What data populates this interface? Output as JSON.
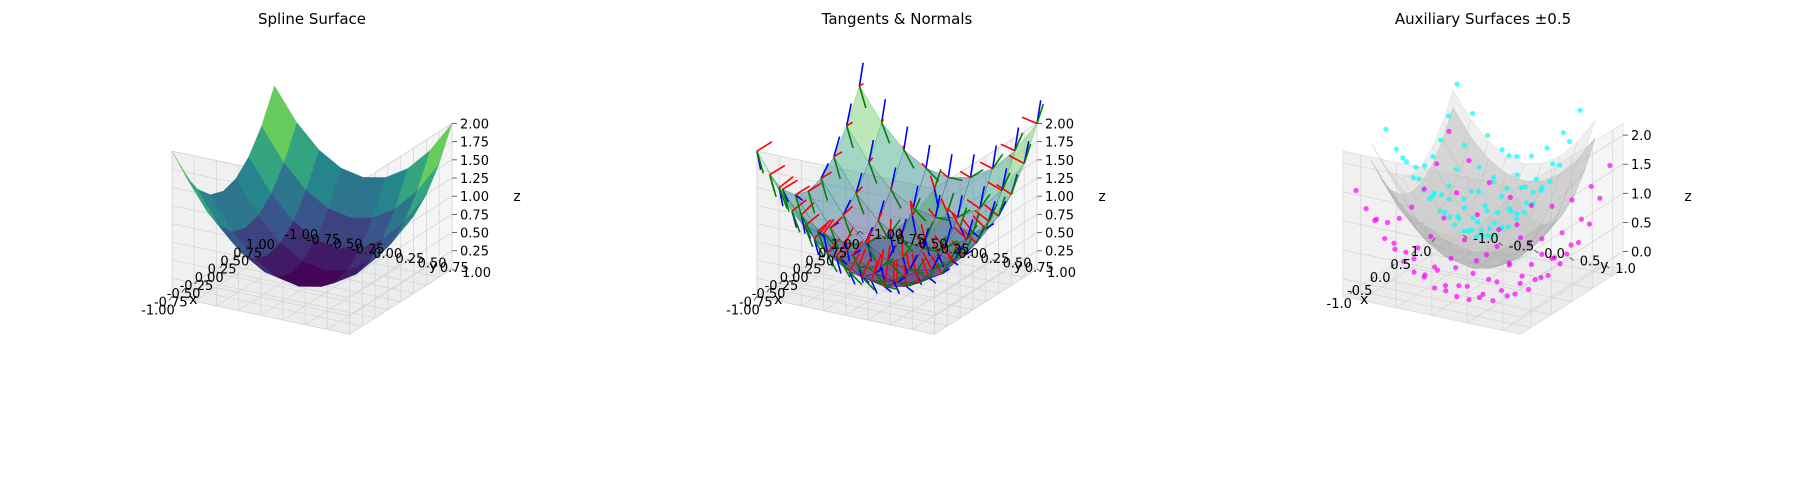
{
  "figure": {
    "background": "#ffffff"
  },
  "chart_data": [
    {
      "type": "surface3d",
      "title": "Spline Surface",
      "xlabel": "x",
      "ylabel": "y",
      "zlabel": "z",
      "xlim": [
        -1.0,
        1.0
      ],
      "ylim": [
        -1.0,
        1.0
      ],
      "zlim": [
        0.0,
        2.0
      ],
      "xticks": [
        "-1.00",
        "-0.75",
        "-0.50",
        "-0.25",
        "0.00",
        "0.25",
        "0.50",
        "0.75",
        "1.00"
      ],
      "yticks": [
        "-1.00",
        "-0.75",
        "-0.50",
        "-0.25",
        "0.00",
        "0.25",
        "0.50",
        "0.75",
        "1.00"
      ],
      "zticks": [
        "0.25",
        "0.50",
        "0.75",
        "1.00",
        "1.25",
        "1.50",
        "1.75",
        "2.00"
      ],
      "surface": {
        "function": "x^2 + y^2",
        "grid": 9,
        "colormap": "viridis"
      },
      "grid": true
    },
    {
      "type": "surface3d",
      "title": "Tangents & Normals",
      "xlabel": "x",
      "ylabel": "y",
      "zlabel": "z",
      "xlim": [
        -1.0,
        1.0
      ],
      "ylim": [
        -1.0,
        1.0
      ],
      "zlim": [
        0.0,
        2.0
      ],
      "xticks": [
        "-1.00",
        "-0.75",
        "-0.50",
        "-0.25",
        "0.00",
        "0.25",
        "0.50",
        "0.75",
        "1.00"
      ],
      "yticks": [
        "-1.00",
        "-0.75",
        "-0.50",
        "-0.25",
        "0.00",
        "0.25",
        "0.50",
        "0.75",
        "1.00"
      ],
      "zticks": [
        "0.25",
        "0.50",
        "0.75",
        "1.00",
        "1.25",
        "1.50",
        "1.75",
        "2.00"
      ],
      "surface": {
        "function": "x^2 + y^2",
        "grid": 9,
        "colormap": "viridis",
        "alpha": 0.45
      },
      "vectors": {
        "grid": 9,
        "tangent_u_color": "#0000ff",
        "tangent_v_color": "#008000",
        "normal_color": "#ff0000"
      },
      "grid": true
    },
    {
      "type": "surface3d",
      "title": "Auxiliary Surfaces ±0.5",
      "xlabel": "x",
      "ylabel": "y",
      "zlabel": "z",
      "xlim": [
        -1.25,
        1.25
      ],
      "ylim": [
        -1.25,
        1.25
      ],
      "zlim": [
        -0.3,
        2.2
      ],
      "xticks": [
        "-1.0",
        "-0.5",
        "0.0",
        "0.5",
        "1.0"
      ],
      "yticks": [
        "-1.0",
        "-0.5",
        "0.0",
        "0.5",
        "1.0"
      ],
      "zticks": [
        "0.0",
        "0.5",
        "1.0",
        "1.5",
        "2.0"
      ],
      "surfaces": [
        {
          "function": "x^2 + y^2",
          "grid": 9,
          "color": "#b0b0b0",
          "alpha": 0.5
        },
        {
          "function": "x^2 + y^2 + 0.3",
          "grid": 9,
          "color": "#d0d0d0",
          "alpha": 0.35
        }
      ],
      "scatter": [
        {
          "offset": 0.5,
          "color": "#00ffff",
          "grid": 9
        },
        {
          "offset": -0.5,
          "color": "#ff00ff",
          "grid": 9
        }
      ],
      "grid": true
    }
  ]
}
